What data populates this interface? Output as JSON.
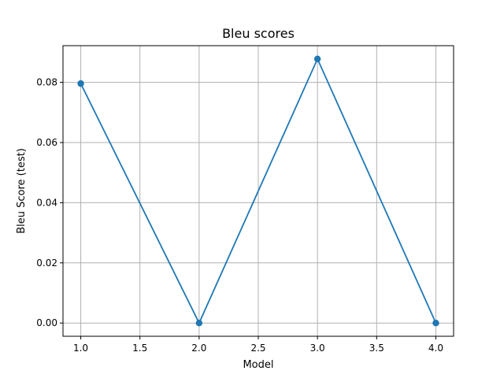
{
  "chart_data": {
    "type": "line",
    "title": "Bleu scores",
    "xlabel": "Model",
    "ylabel": "Bleu Score (test)",
    "x": [
      1.0,
      2.0,
      3.0,
      4.0
    ],
    "series": [
      {
        "values": [
          0.0796,
          0.0,
          0.0878,
          0.0
        ]
      }
    ],
    "xlim": [
      0.85,
      4.15
    ],
    "ylim": [
      -0.0044,
      0.0922
    ],
    "xticks": [
      1.0,
      1.5,
      2.0,
      2.5,
      3.0,
      3.5,
      4.0
    ],
    "xtick_labels": [
      "1.0",
      "1.5",
      "2.0",
      "2.5",
      "3.0",
      "3.5",
      "4.0"
    ],
    "yticks": [
      0.0,
      0.02,
      0.04,
      0.06,
      0.08
    ],
    "ytick_labels": [
      "0.00",
      "0.02",
      "0.04",
      "0.06",
      "0.08"
    ],
    "grid": true,
    "line_color": "#1f77b4",
    "marker": "circle"
  }
}
